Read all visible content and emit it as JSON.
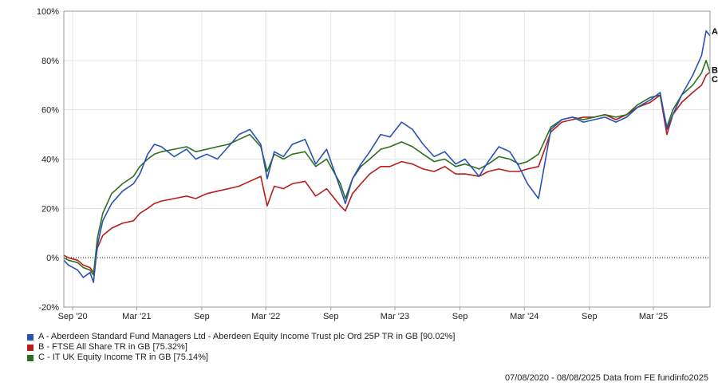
{
  "chart_data": {
    "type": "line",
    "title": "",
    "xlabel": "",
    "ylabel": "",
    "ylim": [
      -20,
      100
    ],
    "y_ticks": [
      "-20%",
      "0%",
      "20%",
      "40%",
      "60%",
      "80%",
      "100%"
    ],
    "y_tick_values": [
      -20,
      0,
      20,
      40,
      60,
      80,
      100
    ],
    "x_range": [
      "2020-08-07",
      "2025-08-08"
    ],
    "x_tick_labels": [
      "Sep '20",
      "Mar '21",
      "Sep",
      "Mar '22",
      "Sep",
      "Mar '23",
      "Sep",
      "Mar '24",
      "Sep",
      "Mar '25"
    ],
    "x_tick_dates": [
      "2020-09-01",
      "2021-03-01",
      "2021-09-01",
      "2022-03-01",
      "2022-09-01",
      "2023-03-01",
      "2023-09-01",
      "2024-03-01",
      "2024-09-01",
      "2025-03-01"
    ],
    "grid": true,
    "zero_line": "dotted",
    "series": [
      {
        "name": "A - Aberdeen Standard Fund Managers Ltd - Aberdeen Equity Income Trust plc Ord 25P TR in GB [90.02%]",
        "end_label": "A",
        "color": "#2a52b5",
        "x": [
          "2020-08-07",
          "2020-08-20",
          "2020-09-15",
          "2020-10-01",
          "2020-10-20",
          "2020-10-30",
          "2020-11-10",
          "2020-11-25",
          "2020-12-20",
          "2021-01-20",
          "2021-02-20",
          "2021-03-10",
          "2021-04-01",
          "2021-04-20",
          "2021-05-10",
          "2021-06-15",
          "2021-07-20",
          "2021-08-15",
          "2021-09-15",
          "2021-10-15",
          "2021-11-15",
          "2021-12-15",
          "2022-01-15",
          "2022-02-15",
          "2022-03-05",
          "2022-03-25",
          "2022-04-20",
          "2022-05-15",
          "2022-06-20",
          "2022-07-20",
          "2022-08-20",
          "2022-09-28",
          "2022-10-12",
          "2022-11-01",
          "2022-11-25",
          "2022-12-20",
          "2023-01-20",
          "2023-02-15",
          "2023-03-20",
          "2023-04-20",
          "2023-05-20",
          "2023-06-20",
          "2023-07-20",
          "2023-08-20",
          "2023-09-15",
          "2023-10-25",
          "2023-11-20",
          "2023-12-20",
          "2024-01-20",
          "2024-02-15",
          "2024-03-10",
          "2024-04-10",
          "2024-05-15",
          "2024-06-15",
          "2024-07-15",
          "2024-08-15",
          "2024-09-15",
          "2024-10-15",
          "2024-11-15",
          "2024-12-15",
          "2025-01-15",
          "2025-02-20",
          "2025-03-20",
          "2025-04-08",
          "2025-04-25",
          "2025-05-20",
          "2025-06-20",
          "2025-07-15",
          "2025-07-28",
          "2025-08-08"
        ],
        "values": [
          -1,
          -3,
          -5,
          -8,
          -6,
          -10,
          5,
          15,
          22,
          27,
          30,
          34,
          42,
          46,
          45,
          41,
          44,
          40,
          42,
          40,
          45,
          50,
          52,
          46,
          32,
          43,
          41,
          46,
          48,
          38,
          44,
          28,
          22,
          32,
          38,
          43,
          50,
          49,
          55,
          52,
          46,
          41,
          43,
          38,
          40,
          33,
          39,
          45,
          43,
          37,
          30,
          24,
          52,
          56,
          57,
          55,
          56,
          57,
          55,
          57,
          61,
          64,
          67,
          52,
          58,
          66,
          74,
          82,
          92,
          90
        ]
      },
      {
        "name": "B - FTSE All Share TR in GB [75.32%]",
        "end_label": "B",
        "color": "#b81c1c",
        "x": [
          "2020-08-07",
          "2020-08-20",
          "2020-09-15",
          "2020-10-01",
          "2020-10-20",
          "2020-10-30",
          "2020-11-10",
          "2020-11-25",
          "2020-12-20",
          "2021-01-20",
          "2021-02-20",
          "2021-03-10",
          "2021-04-01",
          "2021-04-20",
          "2021-05-10",
          "2021-06-15",
          "2021-07-20",
          "2021-08-15",
          "2021-09-15",
          "2021-10-15",
          "2021-11-15",
          "2021-12-15",
          "2022-01-15",
          "2022-02-15",
          "2022-03-05",
          "2022-03-25",
          "2022-04-20",
          "2022-05-15",
          "2022-06-20",
          "2022-07-20",
          "2022-08-20",
          "2022-09-28",
          "2022-10-12",
          "2022-11-01",
          "2022-11-25",
          "2022-12-20",
          "2023-01-20",
          "2023-02-15",
          "2023-03-20",
          "2023-04-20",
          "2023-05-20",
          "2023-06-20",
          "2023-07-20",
          "2023-08-20",
          "2023-09-15",
          "2023-10-25",
          "2023-11-20",
          "2023-12-20",
          "2024-01-20",
          "2024-02-15",
          "2024-03-10",
          "2024-04-10",
          "2024-05-15",
          "2024-06-15",
          "2024-07-15",
          "2024-08-15",
          "2024-09-15",
          "2024-10-15",
          "2024-11-15",
          "2024-12-15",
          "2025-01-15",
          "2025-02-20",
          "2025-03-20",
          "2025-04-08",
          "2025-04-25",
          "2025-05-20",
          "2025-06-20",
          "2025-07-15",
          "2025-07-28",
          "2025-08-08"
        ],
        "values": [
          1,
          0,
          -1,
          -3,
          -4,
          -6,
          4,
          9,
          12,
          14,
          15,
          18,
          20,
          22,
          23,
          24,
          25,
          24,
          26,
          27,
          28,
          29,
          31,
          33,
          21,
          29,
          28,
          30,
          31,
          25,
          28,
          21,
          19,
          26,
          30,
          34,
          37,
          37,
          39,
          38,
          36,
          35,
          37,
          34,
          34,
          33,
          35,
          36,
          35,
          35,
          36,
          37,
          51,
          55,
          56,
          57,
          57,
          58,
          56,
          58,
          61,
          63,
          66,
          50,
          58,
          63,
          67,
          70,
          74,
          75.3
        ]
      },
      {
        "name": "C - IT UK Equity Income TR in GB [75.14%]",
        "end_label": "C",
        "color": "#2e6e1c",
        "x": [
          "2020-08-07",
          "2020-08-20",
          "2020-09-15",
          "2020-10-01",
          "2020-10-20",
          "2020-10-30",
          "2020-11-10",
          "2020-11-25",
          "2020-12-20",
          "2021-01-20",
          "2021-02-20",
          "2021-03-10",
          "2021-04-01",
          "2021-04-20",
          "2021-05-10",
          "2021-06-15",
          "2021-07-20",
          "2021-08-15",
          "2021-09-15",
          "2021-10-15",
          "2021-11-15",
          "2021-12-15",
          "2022-01-15",
          "2022-02-15",
          "2022-03-05",
          "2022-03-25",
          "2022-04-20",
          "2022-05-15",
          "2022-06-20",
          "2022-07-20",
          "2022-08-20",
          "2022-09-28",
          "2022-10-12",
          "2022-11-01",
          "2022-11-25",
          "2022-12-20",
          "2023-01-20",
          "2023-02-15",
          "2023-03-20",
          "2023-04-20",
          "2023-05-20",
          "2023-06-20",
          "2023-07-20",
          "2023-08-20",
          "2023-09-15",
          "2023-10-25",
          "2023-11-20",
          "2023-12-20",
          "2024-01-20",
          "2024-02-15",
          "2024-03-10",
          "2024-04-10",
          "2024-05-15",
          "2024-06-15",
          "2024-07-15",
          "2024-08-15",
          "2024-09-15",
          "2024-10-15",
          "2024-11-15",
          "2024-12-15",
          "2025-01-15",
          "2025-02-20",
          "2025-03-20",
          "2025-04-08",
          "2025-04-25",
          "2025-05-20",
          "2025-06-20",
          "2025-07-15",
          "2025-07-28",
          "2025-08-08"
        ],
        "values": [
          0,
          -1,
          -2,
          -4,
          -5,
          -7,
          8,
          18,
          26,
          30,
          33,
          37,
          40,
          42,
          43,
          44,
          45,
          43,
          44,
          45,
          46,
          48,
          50,
          45,
          35,
          42,
          40,
          42,
          43,
          37,
          40,
          30,
          24,
          32,
          37,
          40,
          44,
          45,
          47,
          45,
          42,
          39,
          40,
          37,
          38,
          36,
          38,
          41,
          40,
          38,
          39,
          42,
          53,
          56,
          57,
          56,
          57,
          58,
          57,
          58,
          62,
          65,
          66,
          53,
          60,
          66,
          70,
          75,
          80,
          75.1
        ]
      }
    ]
  },
  "legend": {
    "items": [
      {
        "label": "A - Aberdeen Standard Fund Managers Ltd - Aberdeen Equity Income Trust plc Ord 25P TR in GB [90.02%]",
        "color": "#2a52b5"
      },
      {
        "label": "B - FTSE All Share TR in GB [75.32%]",
        "color": "#b81c1c"
      },
      {
        "label": "C - IT UK Equity Income TR in GB [75.14%]",
        "color": "#2e6e1c"
      }
    ]
  },
  "footer": {
    "text": "07/08/2020 - 08/08/2025 Data from FE fundinfo2025"
  }
}
